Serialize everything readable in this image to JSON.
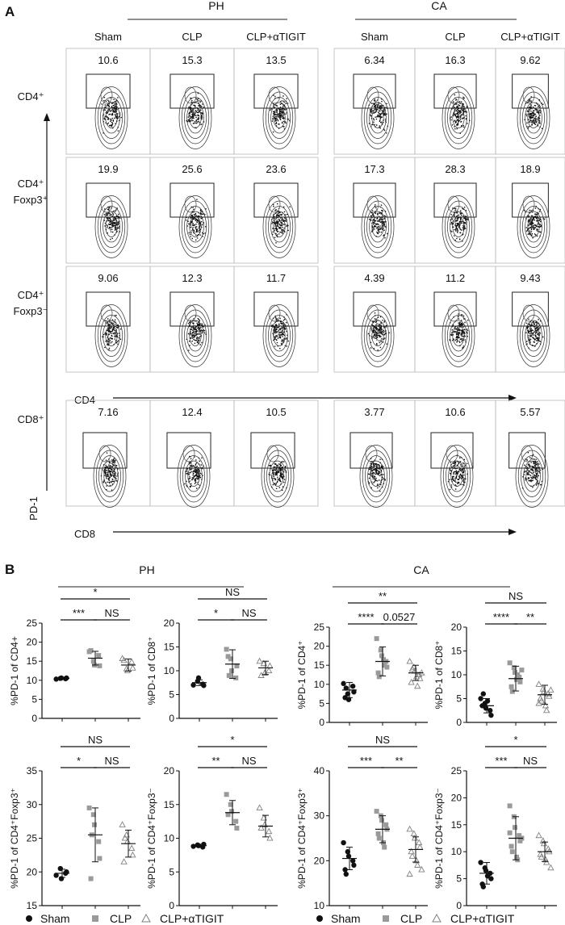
{
  "panel_a": {
    "letter": "A",
    "groups": [
      "PH",
      "CA"
    ],
    "columns": [
      "Sham",
      "CLP",
      "CLP+αTIGIT",
      "Sham",
      "CLP",
      "CLP+αTIGIT"
    ],
    "rows": [
      {
        "label": [
          "CD4⁺"
        ],
        "values": [
          "10.6",
          "15.3",
          "13.5",
          "6.34",
          "16.3",
          "9.62"
        ]
      },
      {
        "label": [
          "CD4⁺",
          "Foxp3⁺"
        ],
        "values": [
          "19.9",
          "25.6",
          "23.6",
          "17.3",
          "28.3",
          "18.9"
        ]
      },
      {
        "label": [
          "CD4⁺",
          "Foxp3⁻"
        ],
        "values": [
          "9.06",
          "12.3",
          "11.7",
          "4.39",
          "11.2",
          "9.43"
        ]
      },
      {
        "label": [
          "CD8⁺"
        ],
        "values": [
          "7.16",
          "12.4",
          "10.5",
          "3.77",
          "10.6",
          "5.57"
        ]
      }
    ],
    "y_axis": "PD-1",
    "x_axis_upper": "CD4",
    "x_axis_lower": "CD8"
  },
  "panel_b": {
    "letter": "B",
    "groups": [
      "PH",
      "CA"
    ]
  },
  "legend": [
    "Sham",
    "CLP",
    "CLP+αTIGIT"
  ],
  "colors": {
    "sham": "#111111",
    "clp": "#9a9a9a",
    "tigit": "#808080"
  },
  "chart_data": [
    {
      "type": "scatter",
      "group": "PH",
      "ylabel": "%PD-1 of CD4+",
      "ylim": [
        0,
        25
      ],
      "yticks": [
        0,
        5,
        10,
        15,
        20,
        25
      ],
      "categories": [
        "Sham",
        "CLP",
        "CLP+αTIGIT"
      ],
      "series": [
        {
          "name": "Sham",
          "mean": 10.5,
          "sd": 0.2,
          "points": [
            10.3,
            10.5,
            10.6,
            10.4,
            10.6
          ]
        },
        {
          "name": "CLP",
          "mean": 15.8,
          "sd": 1.8,
          "points": [
            17.5,
            15.0,
            14.0,
            16.5,
            13.8,
            17.8
          ]
        },
        {
          "name": "CLP+αTIGIT",
          "mean": 14.0,
          "sd": 1.6,
          "points": [
            15.7,
            13.0,
            12.5,
            14.8,
            13.2,
            15.2
          ]
        }
      ],
      "comparisons": [
        {
          "from": 0,
          "to": 2,
          "label": "*",
          "level": 2
        },
        {
          "from": 0,
          "to": 1,
          "label": "***",
          "level": 1
        },
        {
          "from": 1,
          "to": 2,
          "label": "NS",
          "level": 1
        }
      ]
    },
    {
      "type": "scatter",
      "group": "PH",
      "ylabel": "%PD-1 of CD8⁺",
      "ylim": [
        0,
        20
      ],
      "yticks": [
        0,
        5,
        10,
        15,
        20
      ],
      "categories": [
        "Sham",
        "CLP",
        "CLP+αTIGIT"
      ],
      "series": [
        {
          "name": "Sham",
          "mean": 7.5,
          "sd": 0.6,
          "points": [
            7.0,
            7.8,
            8.5,
            7.2,
            6.9
          ]
        },
        {
          "name": "CLP",
          "mean": 11.4,
          "sd": 3.0,
          "points": [
            14.5,
            12.5,
            10.0,
            8.5,
            11.0,
            13.0,
            9.0
          ]
        },
        {
          "name": "CLP+αTIGIT",
          "mean": 10.6,
          "sd": 1.4,
          "points": [
            12.0,
            11.5,
            9.5,
            10.0,
            11.0,
            9.0
          ]
        }
      ],
      "comparisons": [
        {
          "from": 0,
          "to": 2,
          "label": "NS",
          "level": 2
        },
        {
          "from": 0,
          "to": 1,
          "label": "*",
          "level": 1
        },
        {
          "from": 1,
          "to": 2,
          "label": "NS",
          "level": 1
        }
      ]
    },
    {
      "type": "scatter",
      "group": "CA",
      "ylabel": "%PD-1 of CD4⁺",
      "ylim": [
        0,
        25
      ],
      "yticks": [
        0,
        5,
        10,
        15,
        20,
        25
      ],
      "categories": [
        "Sham",
        "CLP",
        "CLP+αTIGIT"
      ],
      "series": [
        {
          "name": "Sham",
          "mean": 8.5,
          "sd": 2.0,
          "points": [
            10.2,
            7.5,
            6.0,
            9.5,
            8.0,
            6.5,
            9.0
          ]
        },
        {
          "name": "CLP",
          "mean": 16.0,
          "sd": 3.8,
          "points": [
            22.0,
            19.0,
            17.5,
            16.0,
            14.5,
            13.0,
            12.0,
            16.5,
            15.0
          ]
        },
        {
          "name": "CLP+αTIGIT",
          "mean": 13.0,
          "sd": 2.0,
          "points": [
            16.0,
            14.5,
            13.5,
            12.5,
            11.5,
            10.5,
            14.0,
            12.0,
            9.5,
            13.0
          ]
        }
      ],
      "comparisons": [
        {
          "from": 0,
          "to": 2,
          "label": "**",
          "level": 2
        },
        {
          "from": 0,
          "to": 1,
          "label": "****",
          "level": 1
        },
        {
          "from": 1,
          "to": 2,
          "label": "0.0527",
          "level": 1
        }
      ]
    },
    {
      "type": "scatter",
      "group": "CA",
      "ylabel": "%PD-1 of CD8⁺",
      "ylim": [
        0,
        20
      ],
      "yticks": [
        0,
        5,
        10,
        15,
        20
      ],
      "categories": [
        "Sham",
        "CLP",
        "CLP+αTIGIT"
      ],
      "series": [
        {
          "name": "Sham",
          "mean": 3.5,
          "sd": 1.5,
          "points": [
            5.0,
            4.0,
            3.0,
            2.5,
            1.5,
            3.5,
            6.0,
            4.5
          ]
        },
        {
          "name": "CLP",
          "mean": 9.2,
          "sd": 2.6,
          "points": [
            12.5,
            11.5,
            10.5,
            9.5,
            8.5,
            7.5,
            6.5,
            9.0,
            10.0,
            11.0
          ]
        },
        {
          "name": "CLP+αTIGIT",
          "mean": 5.8,
          "sd": 2.0,
          "points": [
            8.0,
            7.0,
            6.5,
            6.0,
            5.5,
            5.0,
            4.5,
            3.5,
            2.5,
            6.8,
            4.0
          ]
        }
      ],
      "comparisons": [
        {
          "from": 0,
          "to": 2,
          "label": "NS",
          "level": 2
        },
        {
          "from": 0,
          "to": 1,
          "label": "****",
          "level": 1
        },
        {
          "from": 1,
          "to": 2,
          "label": "**",
          "level": 1
        }
      ]
    },
    {
      "type": "scatter",
      "group": "PH",
      "ylabel": "%PD-1 of CD4⁺Foxp3⁺",
      "ylim": [
        15,
        35
      ],
      "yticks": [
        15,
        20,
        25,
        30,
        35
      ],
      "categories": [
        "Sham",
        "CLP",
        "CLP+αTIGIT"
      ],
      "series": [
        {
          "name": "Sham",
          "mean": 19.8,
          "sd": 0.6,
          "points": [
            19.5,
            20.5,
            19.0,
            19.8,
            20.0
          ]
        },
        {
          "name": "CLP",
          "mean": 25.5,
          "sd": 4.0,
          "points": [
            29.5,
            28.5,
            27.0,
            24.5,
            22.0,
            19.0,
            25.5
          ]
        },
        {
          "name": "CLP+αTIGIT",
          "mean": 24.2,
          "sd": 2.0,
          "points": [
            27.0,
            25.5,
            24.5,
            23.5,
            22.5,
            21.5,
            25.0
          ]
        }
      ],
      "comparisons": [
        {
          "from": 0,
          "to": 2,
          "label": "NS",
          "level": 2
        },
        {
          "from": 0,
          "to": 1,
          "label": "*",
          "level": 1
        },
        {
          "from": 1,
          "to": 2,
          "label": "NS",
          "level": 1
        }
      ]
    },
    {
      "type": "scatter",
      "group": "PH",
      "ylabel": "%PD-1 of CD4⁺Foxp3⁻",
      "ylim": [
        0,
        20
      ],
      "yticks": [
        0,
        5,
        10,
        15,
        20
      ],
      "categories": [
        "Sham",
        "CLP",
        "CLP+αTIGIT"
      ],
      "series": [
        {
          "name": "Sham",
          "mean": 8.9,
          "sd": 0.2,
          "points": [
            8.8,
            9.0,
            8.9,
            8.7,
            9.1
          ]
        },
        {
          "name": "CLP",
          "mean": 13.8,
          "sd": 1.8,
          "points": [
            16.5,
            15.0,
            14.0,
            12.5,
            11.5,
            13.5
          ]
        },
        {
          "name": "CLP+αTIGIT",
          "mean": 11.8,
          "sd": 1.6,
          "points": [
            14.5,
            13.0,
            12.0,
            11.0,
            10.0,
            11.5
          ]
        }
      ],
      "comparisons": [
        {
          "from": 0,
          "to": 2,
          "label": "*",
          "level": 2
        },
        {
          "from": 0,
          "to": 1,
          "label": "**",
          "level": 1
        },
        {
          "from": 1,
          "to": 2,
          "label": "NS",
          "level": 1
        }
      ]
    },
    {
      "type": "scatter",
      "group": "CA",
      "ylabel": "%PD-1 of CD4⁺Foxp3⁺",
      "ylim": [
        10,
        40
      ],
      "yticks": [
        10,
        20,
        30,
        40
      ],
      "categories": [
        "Sham",
        "CLP",
        "CLP+αTIGIT"
      ],
      "series": [
        {
          "name": "Sham",
          "mean": 20.5,
          "sd": 2.5,
          "points": [
            24.0,
            22.0,
            21.0,
            20.0,
            19.0,
            18.0,
            17.0
          ]
        },
        {
          "name": "CLP",
          "mean": 27.0,
          "sd": 3.0,
          "points": [
            31.0,
            30.0,
            29.0,
            28.0,
            27.0,
            26.0,
            25.0,
            24.0,
            23.0
          ]
        },
        {
          "name": "CLP+αTIGIT",
          "mean": 22.5,
          "sd": 2.8,
          "points": [
            27.0,
            26.0,
            25.0,
            24.0,
            23.0,
            22.0,
            21.0,
            20.0,
            19.0,
            18.0,
            17.0
          ]
        }
      ],
      "comparisons": [
        {
          "from": 0,
          "to": 2,
          "label": "NS",
          "level": 2
        },
        {
          "from": 0,
          "to": 1,
          "label": "***",
          "level": 1
        },
        {
          "from": 1,
          "to": 2,
          "label": "**",
          "level": 1
        }
      ]
    },
    {
      "type": "scatter",
      "group": "CA",
      "ylabel": "%PD-1 of CD4⁺Foxp3⁻",
      "ylim": [
        0,
        25
      ],
      "yticks": [
        0,
        5,
        10,
        15,
        20,
        25
      ],
      "categories": [
        "Sham",
        "CLP",
        "CLP+αTIGIT"
      ],
      "series": [
        {
          "name": "Sham",
          "mean": 6.0,
          "sd": 2.0,
          "points": [
            8.0,
            7.0,
            6.5,
            6.0,
            5.0,
            4.0,
            3.5,
            5.5
          ]
        },
        {
          "name": "CLP",
          "mean": 12.5,
          "sd": 4.0,
          "points": [
            18.5,
            16.5,
            14.5,
            13.0,
            12.0,
            11.0,
            10.0,
            9.0,
            8.5,
            12.5,
            13.5
          ]
        },
        {
          "name": "CLP+αTIGIT",
          "mean": 10.0,
          "sd": 1.8,
          "points": [
            13.0,
            12.0,
            11.5,
            10.5,
            10.0,
            9.5,
            9.0,
            8.5,
            8.0,
            7.0
          ]
        }
      ],
      "comparisons": [
        {
          "from": 0,
          "to": 2,
          "label": "*",
          "level": 2
        },
        {
          "from": 0,
          "to": 1,
          "label": "***",
          "level": 1
        },
        {
          "from": 1,
          "to": 2,
          "label": "NS",
          "level": 1
        }
      ]
    }
  ]
}
